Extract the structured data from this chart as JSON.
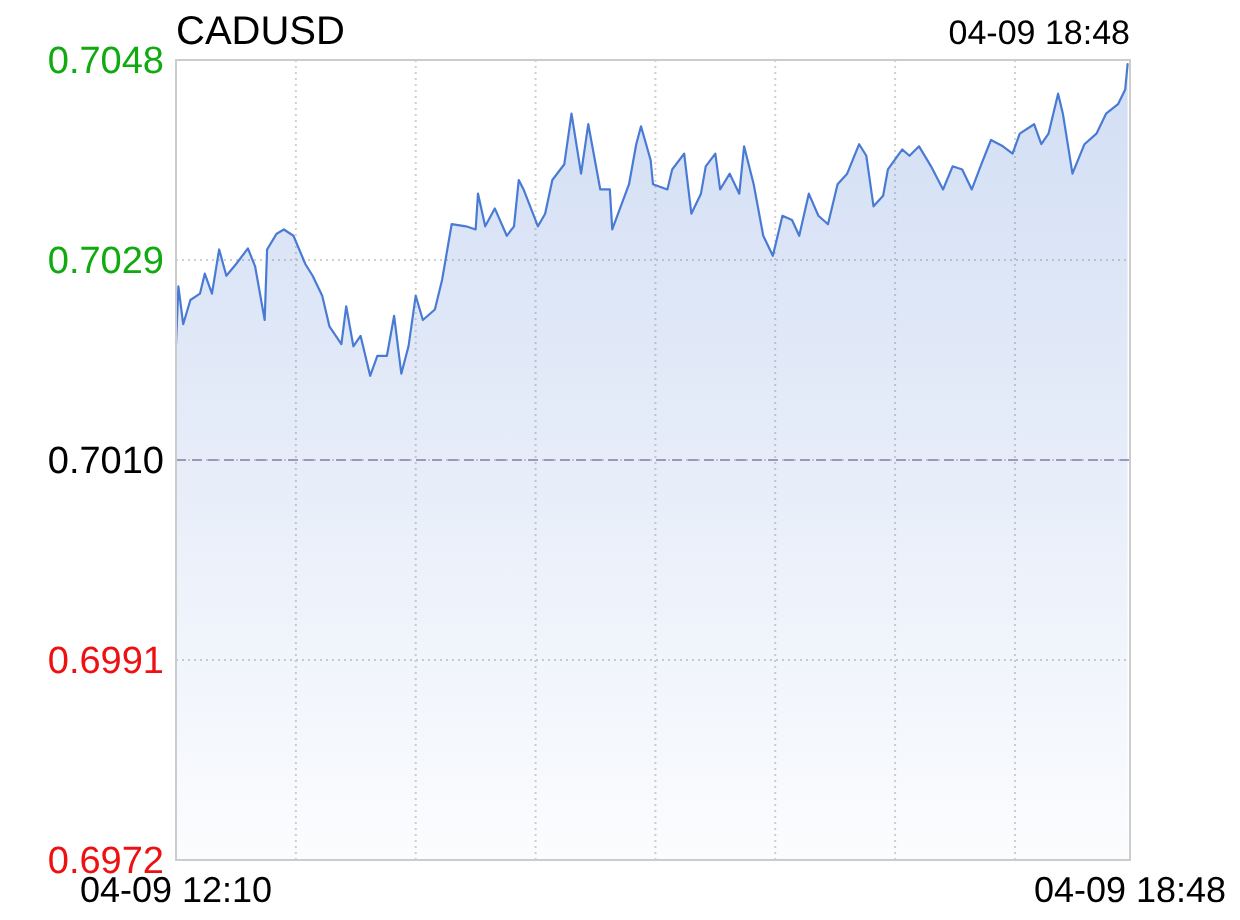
{
  "chart_data": {
    "type": "area",
    "title": "CADUSD",
    "annotations": [
      "04-09 18:48"
    ],
    "xlim": [
      "--04-09T12:10",
      "--04-09T18:48"
    ],
    "xticks": [
      {
        "value": "--04-09T12:10",
        "label": "04-09 12:10"
      },
      {
        "value": "--04-09T13:00",
        "label": null
      },
      {
        "value": "--04-09T13:50",
        "label": null
      },
      {
        "value": "--04-09T14:40",
        "label": null
      },
      {
        "value": "--04-09T15:30",
        "label": null
      },
      {
        "value": "--04-09T16:20",
        "label": null
      },
      {
        "value": "--04-09T17:10",
        "label": null
      },
      {
        "value": "--04-09T18:00",
        "label": null
      },
      {
        "value": "--04-09T18:48",
        "label": "04-09 18:48"
      }
    ],
    "ylim": [
      0.6972,
      0.7048
    ],
    "yticks": [
      {
        "value": 0.6972,
        "label": "0.6972"
      },
      {
        "value": 0.6991,
        "label": "0.6991"
      },
      {
        "value": 0.701,
        "label": "0.7010"
      },
      {
        "value": 0.7029,
        "label": "0.7029"
      },
      {
        "value": 0.7048,
        "label": "0.7048"
      }
    ],
    "grid": true,
    "ref_lines": [
      {
        "axis": "y",
        "value": 0.701,
        "color": "#9a9ab8",
        "line_style": "dashed"
      }
    ],
    "series": [
      {
        "color": "#4a7bd4",
        "x": [
          "--04-09T12:10",
          "--04-09T12:11",
          "--04-09T12:13",
          "--04-09T12:16",
          "--04-09T12:20",
          "--04-09T12:22",
          "--04-09T12:25",
          "--04-09T12:28",
          "--04-09T12:31",
          "--04-09T12:35",
          "--04-09T12:40",
          "--04-09T12:43",
          "--04-09T12:47",
          "--04-09T12:48",
          "--04-09T12:52",
          "--04-09T12:55",
          "--04-09T12:59",
          "--04-09T13:04",
          "--04-09T13:07",
          "--04-09T13:11",
          "--04-09T13:14",
          "--04-09T13:19",
          "--04-09T13:21",
          "--04-09T13:24",
          "--04-09T13:27",
          "--04-09T13:31",
          "--04-09T13:34",
          "--04-09T13:38",
          "--04-09T13:41",
          "--04-09T13:44",
          "--04-09T13:47",
          "--04-09T13:50",
          "--04-09T13:53",
          "--04-09T13:58",
          "--04-09T14:01",
          "--04-09T14:05",
          "--04-09T14:11",
          "--04-09T14:15",
          "--04-09T14:16",
          "--04-09T14:19",
          "--04-09T14:23",
          "--04-09T14:28",
          "--04-09T14:31",
          "--04-09T14:33",
          "--04-09T14:35",
          "--04-09T14:41",
          "--04-09T14:44",
          "--04-09T14:47",
          "--04-09T14:52",
          "--04-09T14:55",
          "--04-09T14:59",
          "--04-09T15:02",
          "--04-09T15:07",
          "--04-09T15:11",
          "--04-09T15:12",
          "--04-09T15:19",
          "--04-09T15:22",
          "--04-09T15:24",
          "--04-09T15:28",
          "--04-09T15:29",
          "--04-09T15:35",
          "--04-09T15:37",
          "--04-09T15:42",
          "--04-09T15:45",
          "--04-09T15:49",
          "--04-09T15:51",
          "--04-09T15:55",
          "--04-09T15:57",
          "--04-09T16:01",
          "--04-09T16:05",
          "--04-09T16:07",
          "--04-09T16:11",
          "--04-09T16:15",
          "--04-09T16:19",
          "--04-09T16:23",
          "--04-09T16:27",
          "--04-09T16:30",
          "--04-09T16:34",
          "--04-09T16:38",
          "--04-09T16:42",
          "--04-09T16:46",
          "--04-09T16:50",
          "--04-09T16:55",
          "--04-09T16:58",
          "--04-09T17:01",
          "--04-09T17:05",
          "--04-09T17:07",
          "--04-09T17:13",
          "--04-09T17:16",
          "--04-09T17:20",
          "--04-09T17:25",
          "--04-09T17:30",
          "--04-09T17:34",
          "--04-09T17:38",
          "--04-09T17:42",
          "--04-09T17:46",
          "--04-09T17:50",
          "--04-09T17:55",
          "--04-09T17:59",
          "--04-09T18:02",
          "--04-09T18:08",
          "--04-09T18:11",
          "--04-09T18:14",
          "--04-09T18:18",
          "--04-09T18:20",
          "--04-09T18:24",
          "--04-09T18:29",
          "--04-09T18:34",
          "--04-09T18:38",
          "--04-09T18:43",
          "--04-09T18:46",
          "--04-09T18:47"
        ],
        "values": [
          0.7021,
          0.70265,
          0.70229,
          0.70252,
          0.70258,
          0.70277,
          0.70258,
          0.703,
          0.70275,
          0.70286,
          0.70301,
          0.70284,
          0.70233,
          0.703,
          0.70315,
          0.70319,
          0.70313,
          0.70286,
          0.70275,
          0.70256,
          0.70227,
          0.7021,
          0.70246,
          0.70208,
          0.70218,
          0.7018,
          0.70199,
          0.70199,
          0.70237,
          0.70182,
          0.70208,
          0.70256,
          0.70233,
          0.70243,
          0.70271,
          0.70324,
          0.70322,
          0.70319,
          0.70353,
          0.70322,
          0.70339,
          0.70313,
          0.70322,
          0.70366,
          0.70357,
          0.70322,
          0.70334,
          0.70366,
          0.70381,
          0.70429,
          0.70372,
          0.70419,
          0.70357,
          0.70357,
          0.70319,
          0.70362,
          0.704,
          0.70417,
          0.70385,
          0.70362,
          0.70357,
          0.70376,
          0.70391,
          0.70334,
          0.70353,
          0.70379,
          0.70391,
          0.70357,
          0.70372,
          0.70353,
          0.70398,
          0.70362,
          0.70313,
          0.70294,
          0.70332,
          0.70328,
          0.70313,
          0.70353,
          0.70332,
          0.70324,
          0.70362,
          0.70372,
          0.704,
          0.70389,
          0.70341,
          0.70351,
          0.70376,
          0.70395,
          0.70389,
          0.70398,
          0.70379,
          0.70357,
          0.70379,
          0.70376,
          0.70357,
          0.70381,
          0.70404,
          0.70398,
          0.70391,
          0.7041,
          0.70419,
          0.704,
          0.7041,
          0.70448,
          0.70429,
          0.70372,
          0.704,
          0.7041,
          0.70429,
          0.70438,
          0.70452,
          0.70476
        ]
      }
    ]
  }
}
